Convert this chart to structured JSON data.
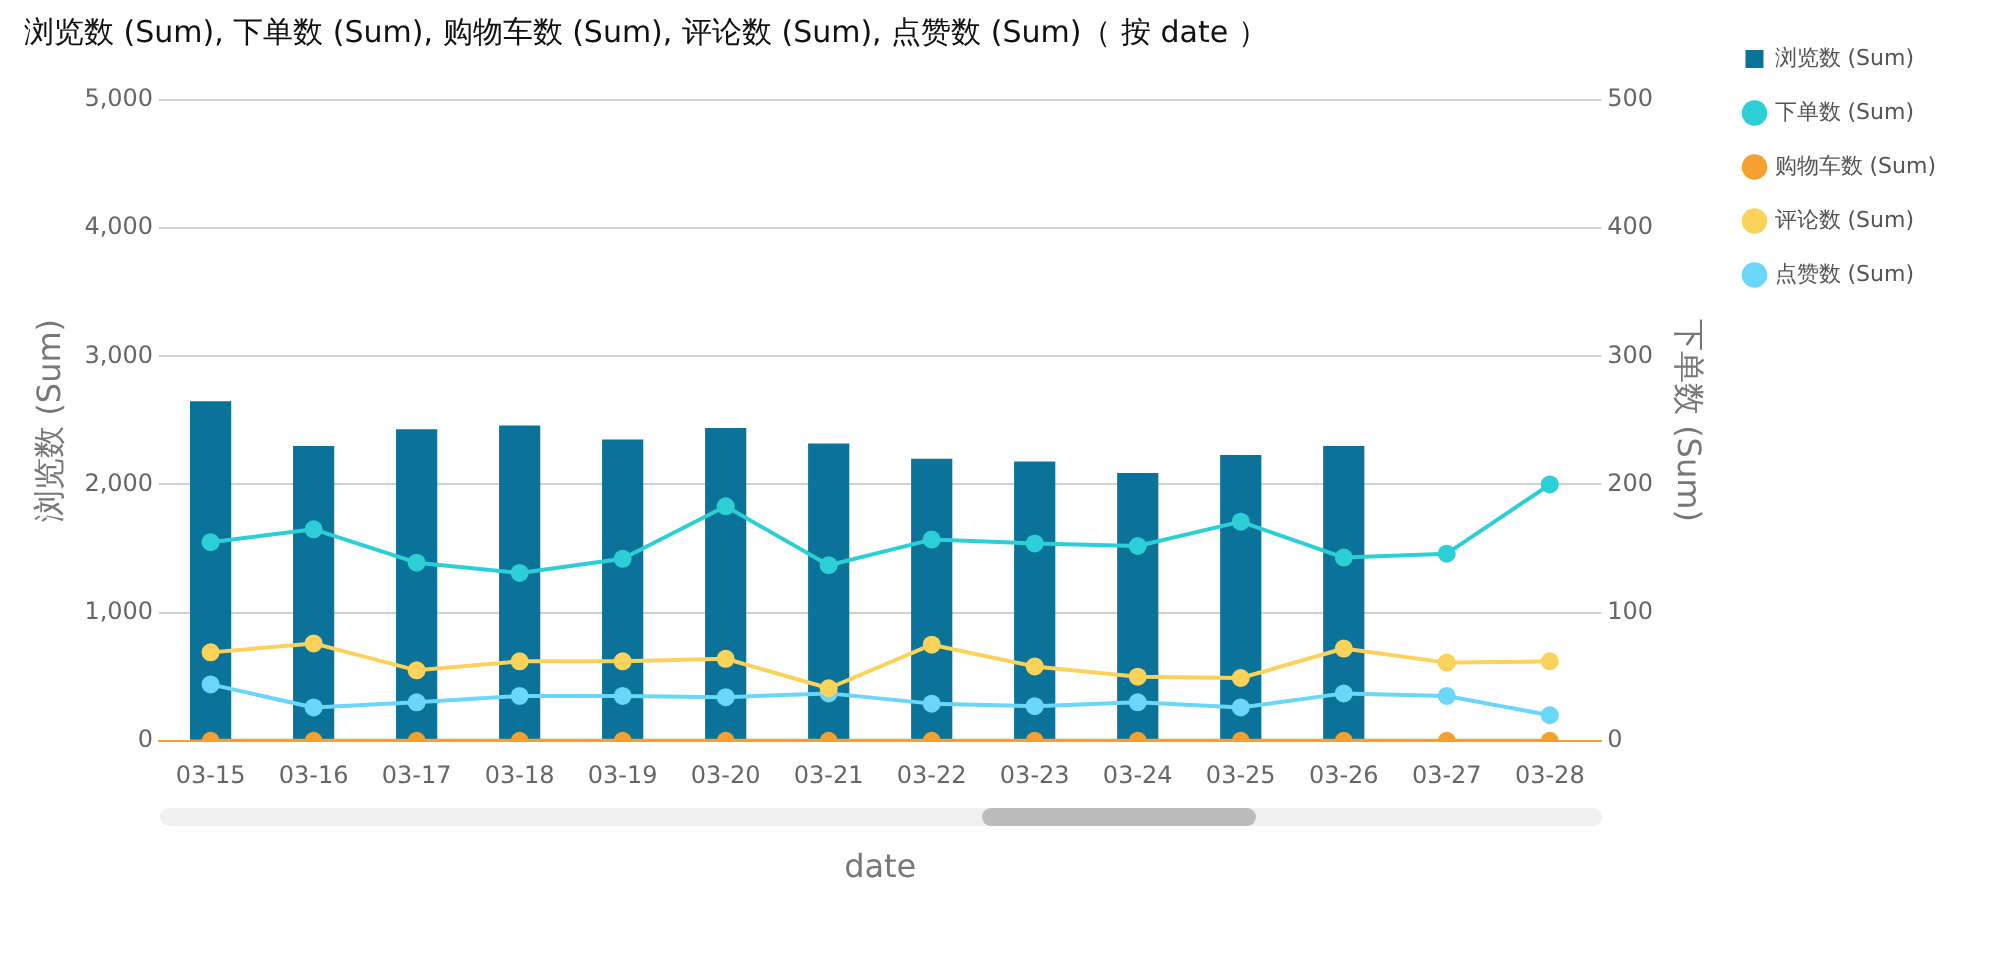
{
  "chart_data": {
    "type": "bar",
    "title": "浏览数 (Sum), 下单数 (Sum), 购物车数 (Sum), 评论数 (Sum), 点赞数 (Sum)（ 按 date ）",
    "xlabel": "date",
    "ylabel": "浏览数 (Sum)",
    "y2label": "下单数 (Sum)",
    "categories": [
      "03-15",
      "03-16",
      "03-17",
      "03-18",
      "03-19",
      "03-20",
      "03-21",
      "03-22",
      "03-23",
      "03-24",
      "03-25",
      "03-26",
      "03-27",
      "03-28"
    ],
    "series": [
      {
        "name": "浏览数 (Sum)",
        "color": "#0b7399",
        "values": [
          2650,
          2300,
          2430,
          2460,
          2350,
          2440,
          2320,
          2200,
          2180,
          2090,
          2230,
          2300,
          null,
          null
        ]
      },
      {
        "name": "下单数 (Sum)",
        "type": "line",
        "axis": "y2",
        "color": "#2ccfd6",
        "values": [
          155,
          165,
          139,
          131,
          142,
          183,
          137,
          157,
          154,
          152,
          171,
          143,
          146,
          200
        ]
      },
      {
        "name": "购物车数 (Sum)",
        "type": "line",
        "axis": "y2",
        "color": "#f7a030",
        "values": [
          0,
          0,
          0,
          0,
          0,
          0,
          0,
          0,
          0,
          0,
          0,
          0,
          0,
          0
        ]
      },
      {
        "name": "评论数 (Sum)",
        "type": "line",
        "axis": "y2",
        "color": "#fbd35b",
        "values": [
          69,
          76,
          55,
          62,
          62,
          64,
          41,
          75,
          58,
          50,
          49,
          72,
          61,
          62
        ]
      },
      {
        "name": "点赞数 (Sum)",
        "type": "line",
        "axis": "y2",
        "color": "#6ad6f8",
        "values": [
          44,
          26,
          30,
          35,
          35,
          34,
          37,
          29,
          27,
          30,
          26,
          37,
          35,
          20
        ]
      }
    ],
    "ylim": [
      0,
      5000
    ],
    "yticks": [
      0,
      {
        "value": 1000,
        "label": "1,000"
      },
      {
        "value": 2000,
        "label": "2,000"
      },
      {
        "value": 3000,
        "label": "3,000"
      },
      {
        "value": 4000,
        "label": "4,000"
      },
      {
        "value": 5000,
        "label": "5,000"
      }
    ],
    "y2lim": [
      0,
      500
    ],
    "y2ticks": [
      0,
      100,
      200,
      300,
      400,
      500
    ],
    "grid": "y",
    "legend": "top right",
    "marker": "circle",
    "line_style": "solid"
  }
}
